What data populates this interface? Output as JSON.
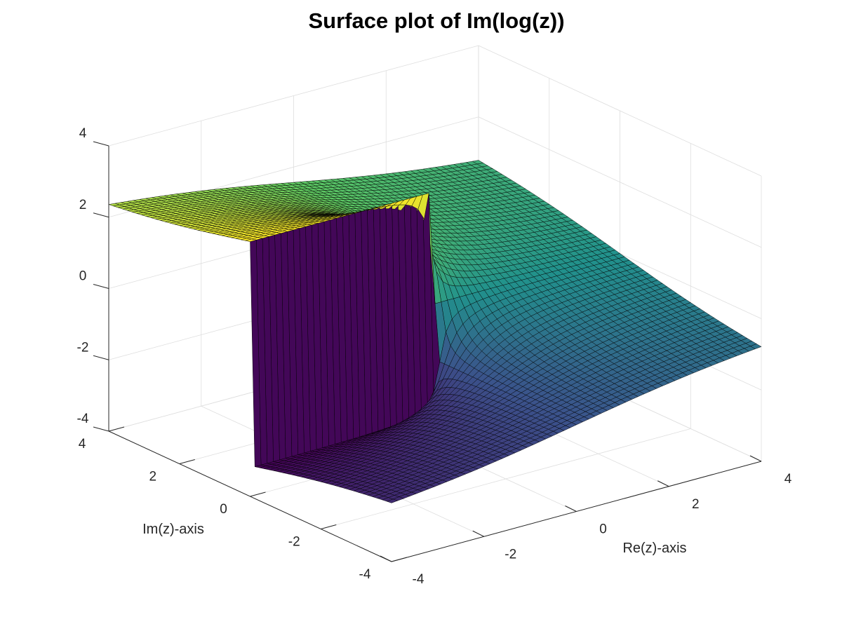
{
  "colors": {
    "grid": "#dedede",
    "axis": "#262626",
    "edge": "#000000",
    "colormap": [
      "#440154",
      "#3b528b",
      "#21918c",
      "#5ec962",
      "#fde725"
    ]
  },
  "chart_data": {
    "type": "surface",
    "title": "Surface plot of Im(log(z))",
    "xlabel": "Re(z)-axis",
    "ylabel": "Im(z)-axis",
    "zlabel": "",
    "function": "Im(log(z))",
    "colormap": "viridis",
    "xlim": [
      -4,
      4
    ],
    "ylim": [
      -4,
      4
    ],
    "zlim": [
      -4,
      4
    ],
    "x_ticks": [
      -4,
      -2,
      0,
      2,
      4
    ],
    "y_ticks": [
      -4,
      -2,
      0,
      2,
      4
    ],
    "z_ticks": [
      -4,
      -2,
      0,
      2,
      4
    ],
    "x_tick_labels": [
      "-4",
      "-2",
      "0",
      "2",
      "4"
    ],
    "y_tick_labels": [
      "-4",
      "-2",
      "0",
      "2",
      "4"
    ],
    "z_tick_labels": [
      "-4",
      "-2",
      "0",
      "2",
      "4"
    ],
    "grid": true,
    "grid_resolution": 60,
    "z_range_shown": [
      -3.1416,
      3.1416
    ],
    "branch_cut": "negative real axis"
  }
}
